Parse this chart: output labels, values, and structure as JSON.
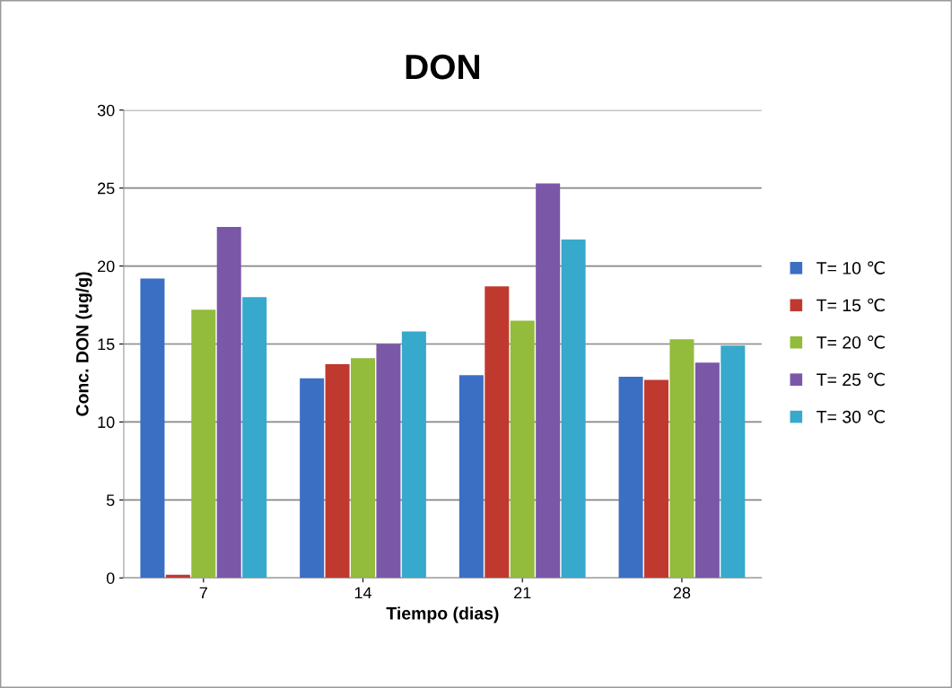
{
  "chart_data": {
    "type": "bar",
    "title": "DON",
    "xlabel": "Tiempo (dias)",
    "ylabel": "Conc. DON (ug/g)",
    "categories": [
      "7",
      "14",
      "21",
      "28"
    ],
    "series": [
      {
        "name": "T= 10 ℃",
        "color": "#3a6fc4",
        "values": [
          19.2,
          12.8,
          13.0,
          12.9
        ]
      },
      {
        "name": "T= 15 ℃",
        "color": "#c0392f",
        "values": [
          0.2,
          13.7,
          18.7,
          12.7
        ]
      },
      {
        "name": "T= 20 ℃",
        "color": "#93bb3c",
        "values": [
          17.2,
          14.1,
          16.5,
          15.3
        ]
      },
      {
        "name": "T= 25 ℃",
        "color": "#7b57a8",
        "values": [
          22.5,
          15.0,
          25.3,
          13.8
        ]
      },
      {
        "name": "T= 30 ℃",
        "color": "#36a9cc",
        "values": [
          18.0,
          15.8,
          21.7,
          14.9
        ]
      }
    ],
    "ylim": [
      0,
      30
    ],
    "yticks": [
      0,
      5,
      10,
      15,
      20,
      25,
      30
    ],
    "grid": "y",
    "legend": "right"
  }
}
